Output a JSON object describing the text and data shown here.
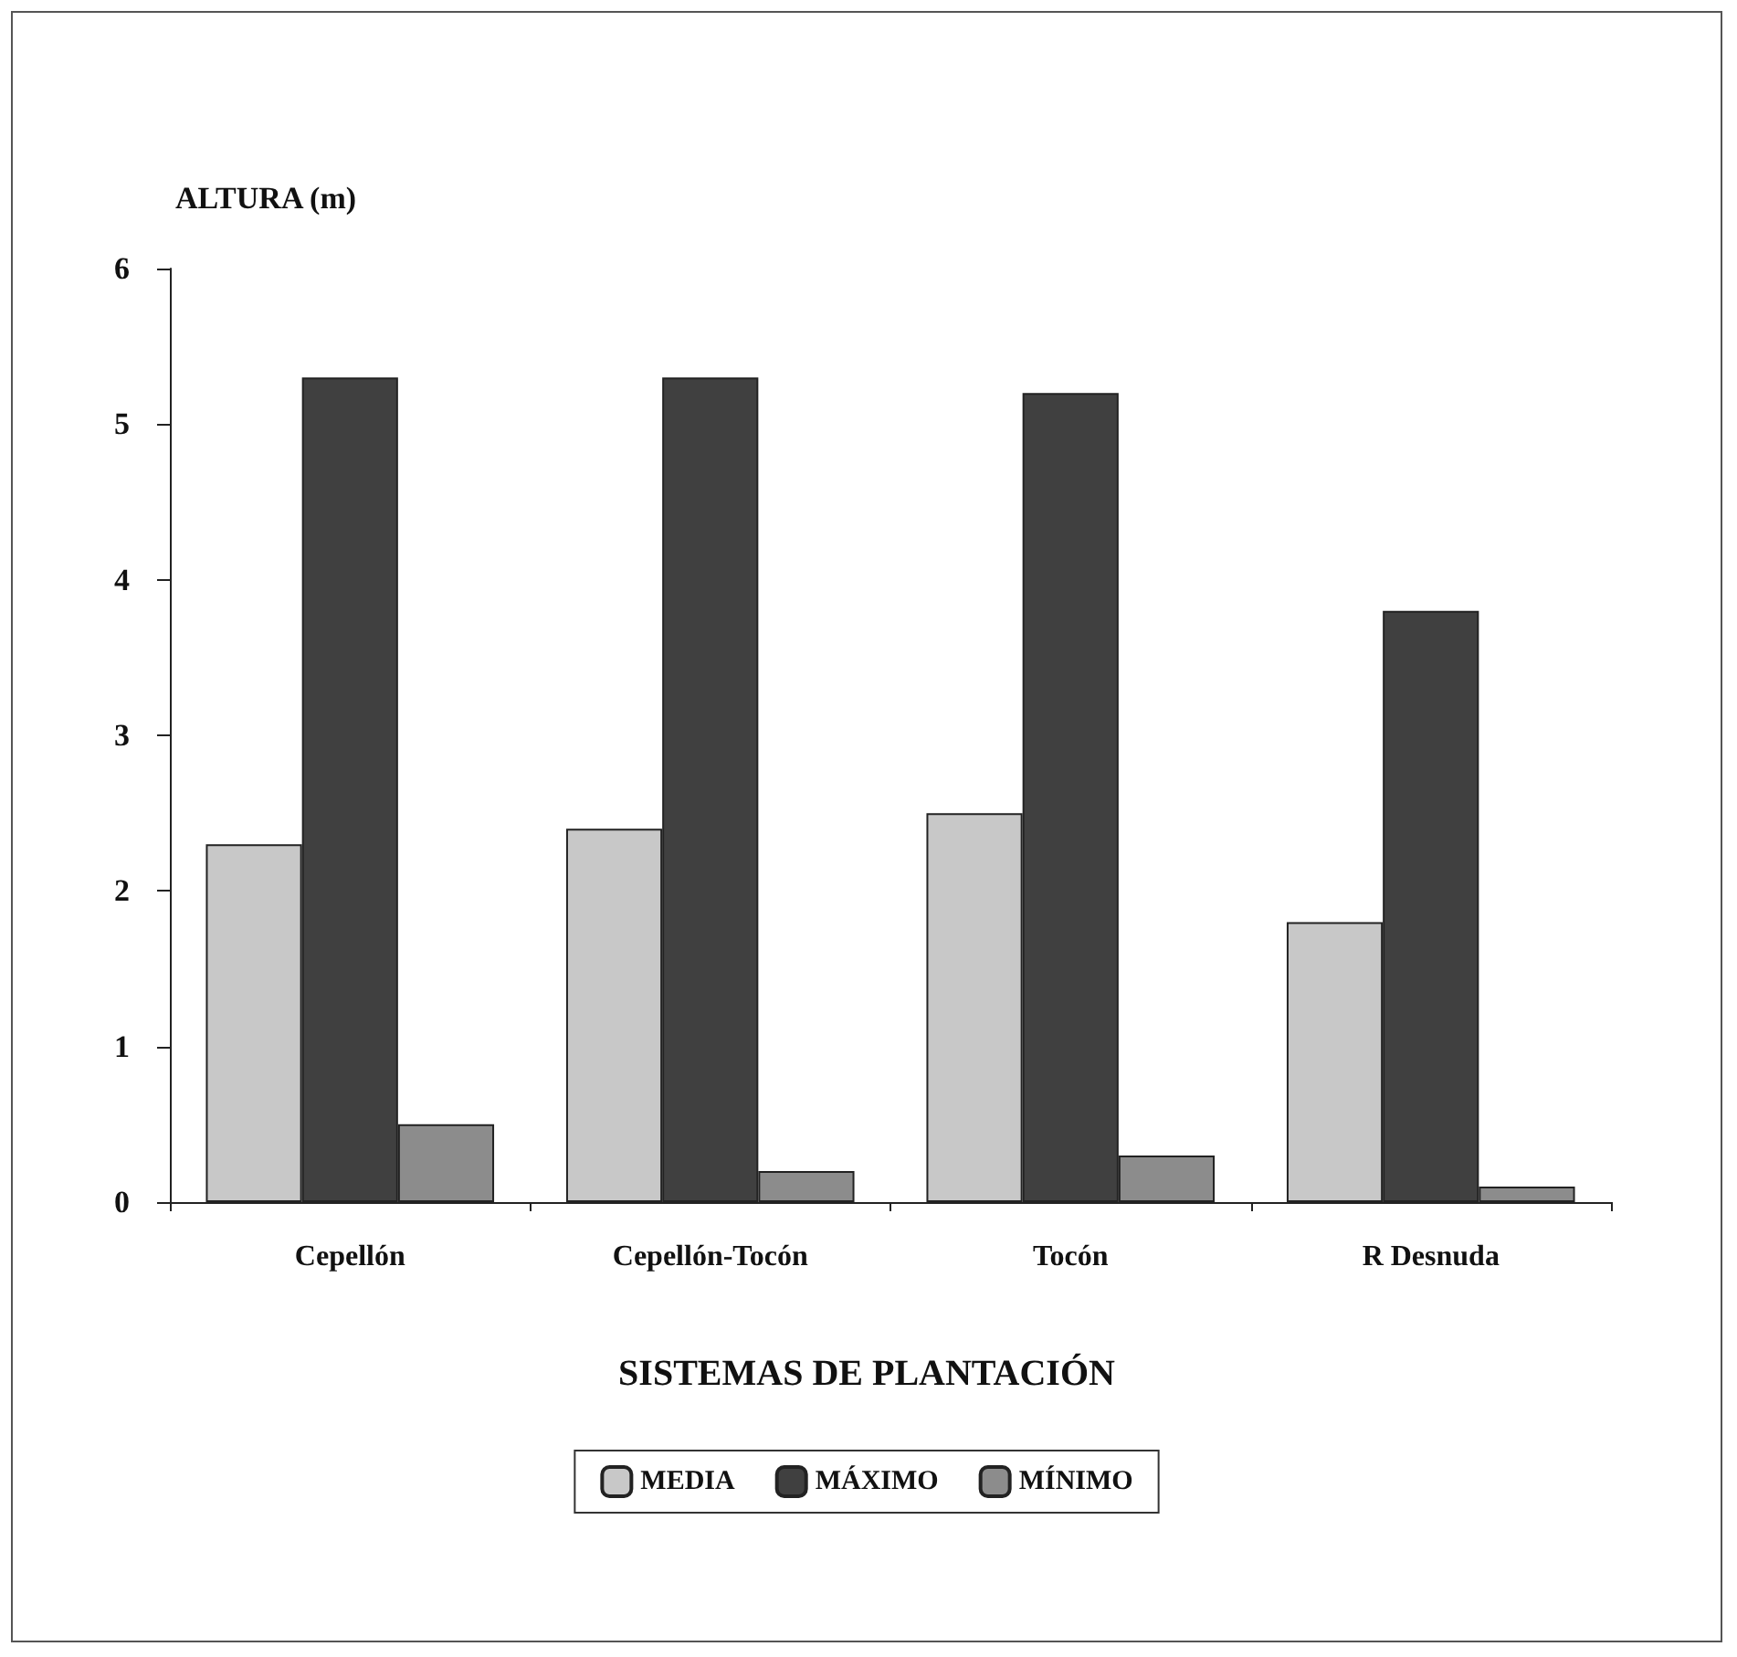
{
  "chart_data": {
    "type": "bar",
    "ylabel": "ALTURA (m)",
    "xlabel": "SISTEMAS DE PLANTACIÓN",
    "categories": [
      "Cepellón",
      "Cepellón-Tocón",
      "Tocón",
      "R Desnuda"
    ],
    "series": [
      {
        "name": "MEDIA",
        "color": "#c8c8c8",
        "values": [
          2.3,
          2.4,
          2.5,
          1.8
        ]
      },
      {
        "name": "MÁXIMO",
        "color": "#404040",
        "values": [
          5.3,
          5.3,
          5.2,
          3.8
        ]
      },
      {
        "name": "MÍNIMO",
        "color": "#8c8c8c",
        "values": [
          0.5,
          0.2,
          0.3,
          0.1
        ]
      }
    ],
    "ylim": [
      0,
      6
    ],
    "yticks": [
      0,
      1,
      2,
      3,
      4,
      5,
      6
    ],
    "grid": false,
    "legend": "bottom"
  }
}
